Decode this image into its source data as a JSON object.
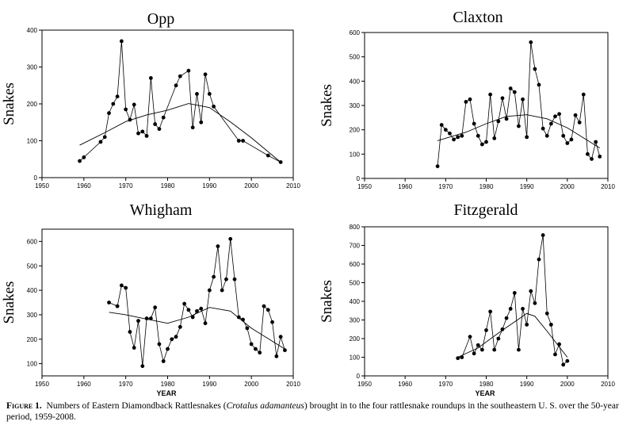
{
  "chart_data": [
    {
      "type": "line",
      "title": "Opp",
      "xlabel": "",
      "ylabel": "Snakes",
      "xlim": [
        1950,
        2010
      ],
      "ylim": [
        0,
        400
      ],
      "xticks": [
        1950,
        1960,
        1970,
        1980,
        1990,
        2000,
        2010
      ],
      "yticks": [
        0,
        100,
        200,
        300,
        400
      ],
      "series": [
        {
          "name": "observed",
          "x": [
            1959,
            1960,
            1964,
            1965,
            1966,
            1967,
            1968,
            1969,
            1970,
            1971,
            1972,
            1973,
            1974,
            1975,
            1976,
            1977,
            1978,
            1979,
            1982,
            1983,
            1985,
            1986,
            1987,
            1988,
            1989,
            1990,
            1991,
            1997,
            1998,
            2004,
            2007
          ],
          "y": [
            45,
            55,
            97,
            110,
            175,
            200,
            220,
            370,
            185,
            157,
            198,
            120,
            125,
            113,
            270,
            145,
            132,
            163,
            250,
            275,
            290,
            136,
            227,
            150,
            280,
            227,
            193,
            100,
            100,
            60,
            42
          ]
        },
        {
          "name": "trend",
          "x": [
            1959,
            1965,
            1970,
            1975,
            1980,
            1985,
            1990,
            1995,
            2000,
            2007
          ],
          "y": [
            88,
            122,
            152,
            170,
            183,
            201,
            190,
            151,
            108,
            42
          ]
        }
      ]
    },
    {
      "type": "line",
      "title": "Claxton",
      "xlabel": "",
      "ylabel": "Snakes",
      "xlim": [
        1950,
        2010
      ],
      "ylim": [
        0,
        600
      ],
      "xticks": [
        1950,
        1960,
        1970,
        1980,
        1990,
        2000,
        2010
      ],
      "yticks": [
        0,
        100,
        200,
        300,
        400,
        500,
        600
      ],
      "series": [
        {
          "name": "observed",
          "x": [
            1968,
            1969,
            1970,
            1971,
            1972,
            1973,
            1974,
            1975,
            1976,
            1977,
            1978,
            1979,
            1980,
            1981,
            1982,
            1983,
            1984,
            1985,
            1986,
            1987,
            1988,
            1989,
            1990,
            1991,
            1992,
            1993,
            1994,
            1995,
            1996,
            1997,
            1998,
            1999,
            2000,
            2001,
            2002,
            2003,
            2004,
            2005,
            2006,
            2007,
            2008
          ],
          "y": [
            50,
            220,
            200,
            185,
            160,
            170,
            175,
            315,
            325,
            225,
            175,
            140,
            150,
            345,
            165,
            235,
            330,
            245,
            370,
            355,
            215,
            325,
            170,
            560,
            450,
            385,
            205,
            175,
            225,
            255,
            265,
            175,
            145,
            160,
            260,
            230,
            345,
            100,
            80,
            150,
            90
          ]
        },
        {
          "name": "trend",
          "x": [
            1968,
            1975,
            1980,
            1985,
            1990,
            1995,
            2000,
            2008
          ],
          "y": [
            155,
            190,
            225,
            255,
            262,
            245,
            208,
            125
          ]
        }
      ]
    },
    {
      "type": "line",
      "title": "Whigham",
      "xlabel": "YEAR",
      "ylabel": "Snakes",
      "xlim": [
        1950,
        2010
      ],
      "ylim": [
        50,
        650
      ],
      "xticks": [
        1950,
        1960,
        1970,
        1980,
        1990,
        2000,
        2010
      ],
      "yticks": [
        100,
        200,
        300,
        400,
        500,
        600
      ],
      "series": [
        {
          "name": "observed",
          "x": [
            1966,
            1968,
            1969,
            1970,
            1971,
            1972,
            1973,
            1974,
            1975,
            1976,
            1977,
            1978,
            1979,
            1980,
            1981,
            1982,
            1983,
            1984,
            1985,
            1986,
            1987,
            1988,
            1989,
            1990,
            1991,
            1992,
            1993,
            1994,
            1995,
            1996,
            1997,
            1998,
            1999,
            2000,
            2001,
            2002,
            2003,
            2004,
            2005,
            2006,
            2007,
            2008
          ],
          "y": [
            350,
            335,
            420,
            410,
            230,
            165,
            275,
            90,
            285,
            285,
            330,
            180,
            110,
            160,
            200,
            210,
            250,
            345,
            320,
            290,
            315,
            325,
            265,
            400,
            455,
            580,
            400,
            445,
            610,
            445,
            290,
            280,
            245,
            180,
            160,
            145,
            335,
            320,
            270,
            130,
            210,
            155
          ]
        },
        {
          "name": "trend",
          "x": [
            1966,
            1970,
            1975,
            1980,
            1985,
            1990,
            1995,
            2000,
            2008
          ],
          "y": [
            310,
            300,
            282,
            265,
            290,
            330,
            315,
            245,
            160
          ]
        }
      ]
    },
    {
      "type": "line",
      "title": "Fitzgerald",
      "xlabel": "YEAR",
      "ylabel": "Snakes",
      "xlim": [
        1950,
        2010
      ],
      "ylim": [
        0,
        800
      ],
      "xticks": [
        1950,
        1960,
        1970,
        1980,
        1990,
        2000,
        2010
      ],
      "yticks": [
        0,
        100,
        200,
        300,
        400,
        500,
        600,
        700,
        800
      ],
      "series": [
        {
          "name": "observed",
          "x": [
            1973,
            1974,
            1976,
            1977,
            1978,
            1979,
            1980,
            1981,
            1982,
            1983,
            1984,
            1985,
            1986,
            1987,
            1988,
            1989,
            1990,
            1991,
            1992,
            1993,
            1994,
            1995,
            1996,
            1997,
            1998,
            1999,
            2000
          ],
          "y": [
            95,
            100,
            210,
            120,
            165,
            140,
            245,
            345,
            140,
            200,
            250,
            310,
            360,
            445,
            140,
            360,
            275,
            455,
            390,
            625,
            755,
            335,
            275,
            115,
            170,
            60,
            80
          ]
        },
        {
          "name": "trend",
          "x": [
            1973,
            1978,
            1983,
            1988,
            1990,
            1992,
            1995,
            2000
          ],
          "y": [
            100,
            150,
            230,
            305,
            335,
            320,
            240,
            100
          ]
        }
      ]
    }
  ],
  "caption": {
    "label": "Figure 1.",
    "text_before": "Numbers of Eastern Diamondback Rattlesnakes (",
    "species": "Crotalus adamanteus",
    "text_after": ") brought in to the four rattlesnake roundups in the southeastern U. S. over the 50-year period, 1959-2008."
  }
}
